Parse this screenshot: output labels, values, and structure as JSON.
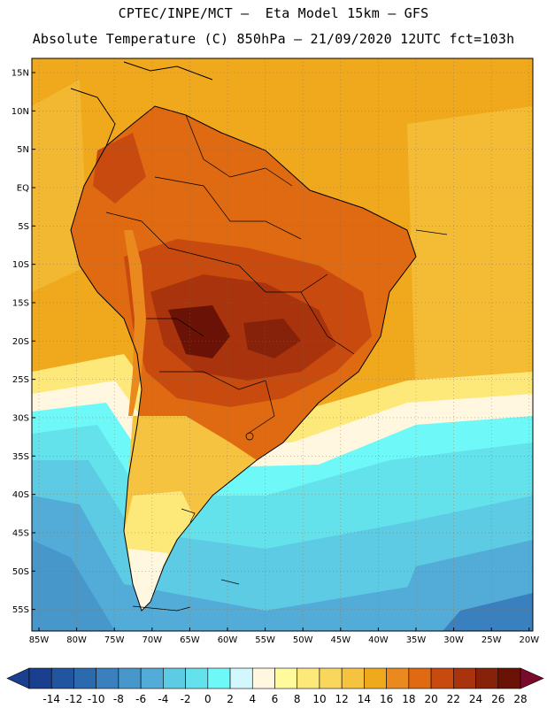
{
  "header": {
    "line1": "CPTEC/INPE/MCT –  Eta Model 15km – GFS",
    "line2": "Absolute Temperature (C) 850hPa – 21/09/2020 12UTC fct=103h"
  },
  "map": {
    "lat_labels": [
      "15N",
      "10N",
      "5N",
      "EQ",
      "5S",
      "10S",
      "15S",
      "20S",
      "25S",
      "30S",
      "35S",
      "40S",
      "45S",
      "50S",
      "55S"
    ],
    "lon_labels": [
      "85W",
      "80W",
      "75W",
      "70W",
      "65W",
      "60W",
      "55W",
      "50W",
      "45W",
      "40W",
      "35W",
      "30W",
      "25W",
      "20W"
    ],
    "ocean_color": "#f0a91c"
  },
  "colorbar": {
    "labels": [
      "-14",
      "-12",
      "-10",
      "-8",
      "-6",
      "-4",
      "-2",
      "0",
      "2",
      "4",
      "6",
      "8",
      "10",
      "12",
      "14",
      "16",
      "18",
      "20",
      "22",
      "24",
      "26",
      "28"
    ],
    "colors": [
      "#1b3f8f",
      "#22559f",
      "#2c6aae",
      "#3a80be",
      "#4797cb",
      "#52acd7",
      "#5ccbe3",
      "#64e2ec",
      "#6ef8f8",
      "#d2f7fc",
      "#fff7e0",
      "#fffa9b",
      "#fde97a",
      "#f9d65c",
      "#f5c33f",
      "#f0a91c",
      "#e9891e",
      "#df6a12",
      "#c94a0f",
      "#a8330c",
      "#862209",
      "#6a1206"
    ]
  }
}
